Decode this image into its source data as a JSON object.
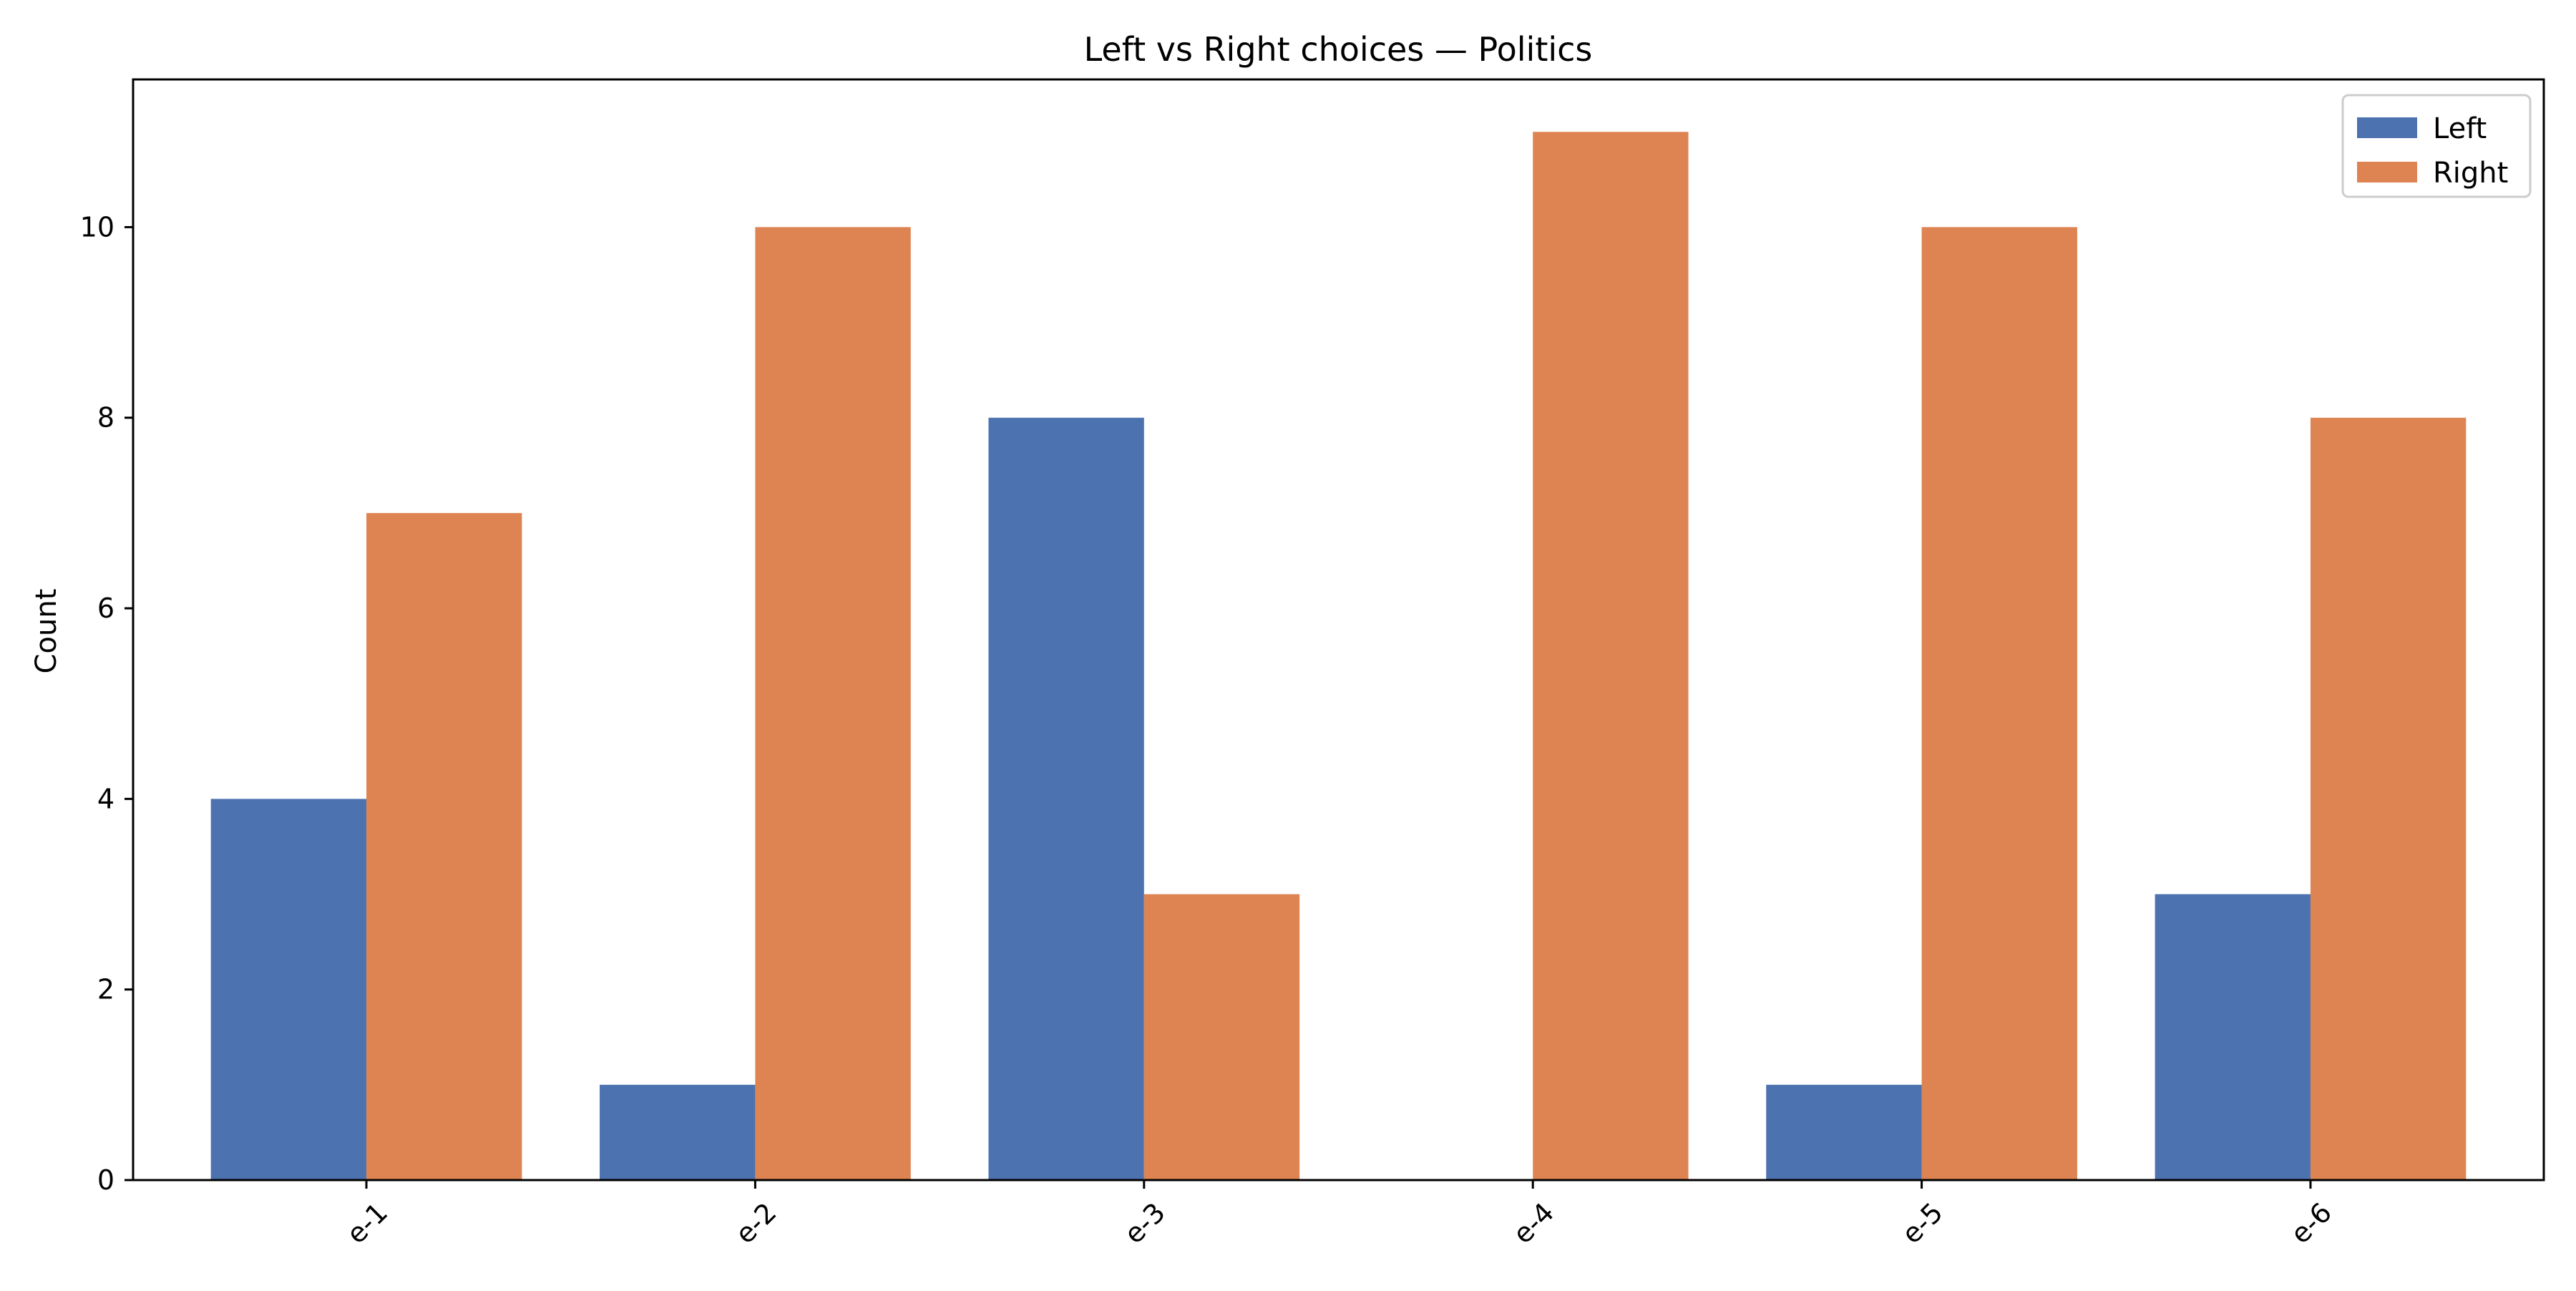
{
  "chart_data": {
    "type": "bar",
    "title": "Left vs Right choices — Politics",
    "xlabel": "",
    "ylabel": "Count",
    "categories": [
      "e-1",
      "e-2",
      "e-3",
      "e-4",
      "e-5",
      "e-6"
    ],
    "series": [
      {
        "name": "Left",
        "color": "#4c72b0",
        "values": [
          4,
          1,
          8,
          0,
          1,
          3
        ]
      },
      {
        "name": "Right",
        "color": "#dd8452",
        "values": [
          7,
          10,
          3,
          11,
          10,
          8
        ]
      }
    ],
    "ylim": [
      0,
      11.55
    ],
    "yticks": [
      0,
      2,
      4,
      6,
      8,
      10
    ],
    "grid": false,
    "legend_position": "top-right",
    "xtick_rotation": "45"
  }
}
